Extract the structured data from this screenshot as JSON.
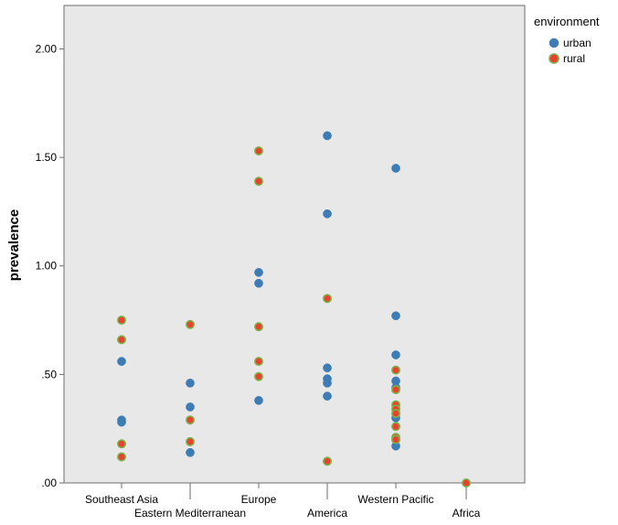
{
  "chart_data": {
    "type": "scatter",
    "ylabel": "prevalence",
    "xlabel": "",
    "ylim": [
      0,
      2.2
    ],
    "yticks": [
      0,
      0.5,
      1.0,
      1.5,
      2.0
    ],
    "ytick_labels": [
      ".00",
      ".50",
      "1.00",
      "1.50",
      "2.00"
    ],
    "categories": [
      "Southeast Asia",
      "Eastern Mediterranean",
      "Europe",
      "America",
      "Western Pacific",
      "Africa"
    ],
    "legend": {
      "title": "environment",
      "placement": "top-right-outside",
      "entries": [
        {
          "name": "urban",
          "color": "#3E7CB5"
        },
        {
          "name": "rural",
          "color": "#E8412E",
          "edge": "#7DB24B"
        }
      ]
    },
    "colors": {
      "plot_background": "#E8E8E8",
      "urban_fill": "#3E7CB5",
      "rural_fill": "#E8412E",
      "rural_edge": "#7DB24B"
    },
    "series": [
      {
        "name": "urban",
        "points": [
          {
            "category": "Southeast Asia",
            "y": 0.56
          },
          {
            "category": "Southeast Asia",
            "y": 0.29
          },
          {
            "category": "Southeast Asia",
            "y": 0.28
          },
          {
            "category": "Eastern Mediterranean",
            "y": 0.46
          },
          {
            "category": "Eastern Mediterranean",
            "y": 0.35
          },
          {
            "category": "Eastern Mediterranean",
            "y": 0.14
          },
          {
            "category": "Europe",
            "y": 0.97
          },
          {
            "category": "Europe",
            "y": 0.92
          },
          {
            "category": "Europe",
            "y": 0.38
          },
          {
            "category": "America",
            "y": 1.6
          },
          {
            "category": "America",
            "y": 1.24
          },
          {
            "category": "America",
            "y": 0.53
          },
          {
            "category": "America",
            "y": 0.48
          },
          {
            "category": "America",
            "y": 0.46
          },
          {
            "category": "America",
            "y": 0.4
          },
          {
            "category": "Western Pacific",
            "y": 1.45
          },
          {
            "category": "Western Pacific",
            "y": 0.77
          },
          {
            "category": "Western Pacific",
            "y": 0.59
          },
          {
            "category": "Western Pacific",
            "y": 0.47
          },
          {
            "category": "Western Pacific",
            "y": 0.44
          },
          {
            "category": "Western Pacific",
            "y": 0.3
          },
          {
            "category": "Western Pacific",
            "y": 0.17
          }
        ]
      },
      {
        "name": "rural",
        "points": [
          {
            "category": "Southeast Asia",
            "y": 0.75
          },
          {
            "category": "Southeast Asia",
            "y": 0.66
          },
          {
            "category": "Southeast Asia",
            "y": 0.18
          },
          {
            "category": "Southeast Asia",
            "y": 0.12
          },
          {
            "category": "Eastern Mediterranean",
            "y": 0.73
          },
          {
            "category": "Eastern Mediterranean",
            "y": 0.29
          },
          {
            "category": "Eastern Mediterranean",
            "y": 0.19
          },
          {
            "category": "Europe",
            "y": 1.53
          },
          {
            "category": "Europe",
            "y": 1.39
          },
          {
            "category": "Europe",
            "y": 0.72
          },
          {
            "category": "Europe",
            "y": 0.56
          },
          {
            "category": "Europe",
            "y": 0.49
          },
          {
            "category": "America",
            "y": 0.85
          },
          {
            "category": "America",
            "y": 0.1
          },
          {
            "category": "Western Pacific",
            "y": 0.52
          },
          {
            "category": "Western Pacific",
            "y": 0.43
          },
          {
            "category": "Western Pacific",
            "y": 0.36
          },
          {
            "category": "Western Pacific",
            "y": 0.34
          },
          {
            "category": "Western Pacific",
            "y": 0.32
          },
          {
            "category": "Western Pacific",
            "y": 0.26
          },
          {
            "category": "Western Pacific",
            "y": 0.21
          },
          {
            "category": "Western Pacific",
            "y": 0.2
          },
          {
            "category": "Africa",
            "y": 0.0
          }
        ]
      }
    ]
  }
}
